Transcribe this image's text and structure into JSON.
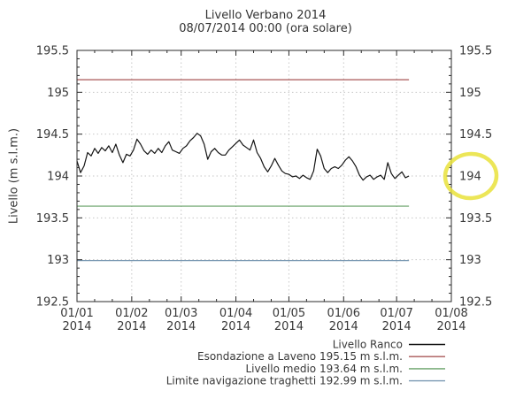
{
  "header": {
    "title": "Livello Verbano 2014",
    "subtitle": "08/07/2014 00:00 (ora solare)"
  },
  "chart_data": {
    "type": "line",
    "title": "Livello Verbano 2014",
    "subtitle": "08/07/2014 00:00 (ora solare)",
    "xlabel": "",
    "ylabel": "Livello (m s.l.m.)",
    "ylim": [
      192.5,
      195.5
    ],
    "ytick_values": [
      192.5,
      193,
      193.5,
      194,
      194.5,
      195,
      195.5
    ],
    "ytick_labels": [
      "192.5",
      "193",
      "193.5",
      "194",
      "194.5",
      "195",
      "195.5"
    ],
    "y_minor_step": 0.1,
    "x_axis": {
      "range_days": [
        0,
        212
      ],
      "tick_day_offsets": [
        0,
        31,
        59,
        90,
        120,
        151,
        181,
        212
      ],
      "tick_labels": [
        [
          "01/01",
          "2014"
        ],
        [
          "01/02",
          "2014"
        ],
        [
          "01/03",
          "2014"
        ],
        [
          "01/04",
          "2014"
        ],
        [
          "01/05",
          "2014"
        ],
        [
          "01/06",
          "2014"
        ],
        [
          "01/07",
          "2014"
        ],
        [
          "01/08",
          "2014"
        ]
      ],
      "minor_tick_day_offsets": [
        10,
        20
      ]
    },
    "grid": {
      "style": "dotted",
      "color": "#c6c6c6"
    },
    "legend_position": "bottom-right-below-plot",
    "series": [
      {
        "name": "Livello Ranco",
        "type": "data",
        "color": "#141414",
        "x_days": [
          0,
          2,
          4,
          6,
          8,
          10,
          12,
          14,
          16,
          18,
          20,
          22,
          24,
          26,
          28,
          30,
          32,
          34,
          36,
          38,
          40,
          42,
          44,
          46,
          48,
          50,
          52,
          54,
          56,
          58,
          60,
          62,
          64,
          66,
          68,
          70,
          72,
          74,
          76,
          78,
          80,
          82,
          84,
          86,
          88,
          90,
          92,
          94,
          96,
          98,
          100,
          102,
          104,
          106,
          108,
          110,
          112,
          114,
          116,
          118,
          120,
          122,
          124,
          126,
          128,
          130,
          132,
          134,
          136,
          138,
          140,
          142,
          144,
          146,
          148,
          150,
          152,
          154,
          156,
          158,
          160,
          162,
          164,
          166,
          168,
          170,
          172,
          174,
          176,
          178,
          180,
          182,
          184,
          186,
          188
        ],
        "values": [
          194.18,
          194.04,
          194.12,
          194.28,
          194.24,
          194.33,
          194.27,
          194.34,
          194.3,
          194.36,
          194.28,
          194.38,
          194.25,
          194.16,
          194.26,
          194.24,
          194.31,
          194.44,
          194.38,
          194.3,
          194.26,
          194.31,
          194.27,
          194.33,
          194.28,
          194.36,
          194.41,
          194.31,
          194.29,
          194.27,
          194.33,
          194.36,
          194.42,
          194.46,
          194.51,
          194.48,
          194.38,
          194.2,
          194.29,
          194.33,
          194.28,
          194.25,
          194.25,
          194.31,
          194.35,
          194.39,
          194.43,
          194.37,
          194.34,
          194.31,
          194.43,
          194.28,
          194.21,
          194.11,
          194.05,
          194.12,
          194.21,
          194.13,
          194.06,
          194.03,
          194.02,
          193.99,
          194.0,
          193.97,
          194.01,
          193.98,
          193.96,
          194.06,
          194.32,
          194.24,
          194.09,
          194.04,
          194.09,
          194.11,
          194.09,
          194.13,
          194.19,
          194.23,
          194.18,
          194.11,
          194.01,
          193.95,
          193.99,
          194.01,
          193.96,
          193.99,
          194.01,
          193.96,
          194.16,
          194.03,
          193.97,
          194.01,
          194.05,
          193.98,
          194.0
        ]
      },
      {
        "name": "Esondazione a Laveno 195.15 m s.l.m.",
        "type": "hline",
        "value": 195.15,
        "end_day": 188,
        "color": "#a85757"
      },
      {
        "name": "Livello medio 193.64 m s.l.m.",
        "type": "hline",
        "value": 193.64,
        "end_day": 188,
        "color": "#66a166"
      },
      {
        "name": "Limite navigazione traghetti 192.99 m s.l.m.",
        "type": "hline",
        "value": 192.99,
        "end_day": 188,
        "color": "#7a99b3"
      }
    ]
  },
  "annotation": {
    "highlight_circle": {
      "target_label": "194",
      "axis": "right",
      "color": "#e9e23b"
    }
  }
}
